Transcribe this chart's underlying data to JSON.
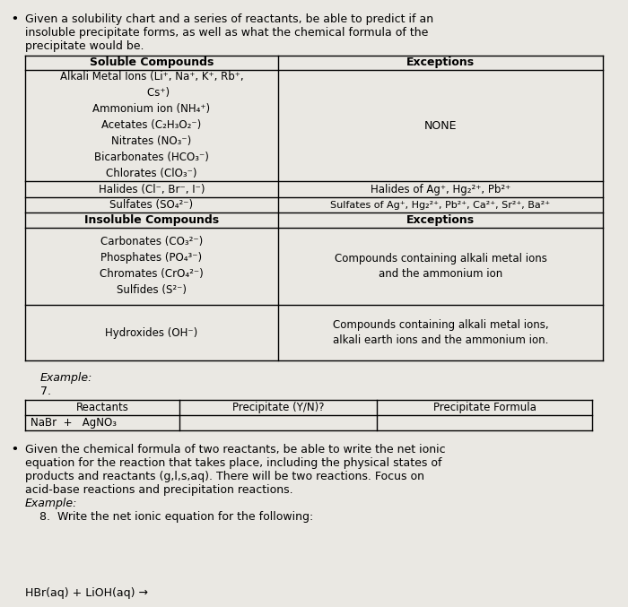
{
  "background_color": "#eae8e3",
  "bullet1": "Given a solubility chart and a series of reactants, be able to predict if an\ninsoluble precipitate forms, as well as what the chemical formula of the\nprecipitate would be.",
  "soluble_header": "Soluble Compounds",
  "exceptions_header1": "Exceptions",
  "insoluble_header": "Insoluble Compounds",
  "exceptions_header2": "Exceptions",
  "soluble_block": "Alkali Metal Ions (Li⁺, Na⁺, K⁺, Rb⁺,\n    Cs⁺)\nAmmonium ion (NH₄⁺)\nAcetates (C₂H₃O₂⁻)\nNitrates (NO₃⁻)\nBicarbonates (HCO₃⁻)\nChlorates (ClO₃⁻)",
  "halides_left": "Halides (Cl⁻, Br⁻, I⁻)",
  "halides_right": "Halides of Ag⁺, Hg₂²⁺, Pb²⁺",
  "sulfates_left": "Sulfates (SO₄²⁻)",
  "sulfates_right": "Sulfates of Ag⁺, Hg₂²⁺, Pb²⁺, Ca²⁺, Sr²⁺, Ba²⁺",
  "insoluble_block": "Carbonates (CO₃²⁻)\nPhosphates (PO₄³⁻)\nChromates (CrO₄²⁻)\nSulfides (S²⁻)",
  "insoluble_exc1": "Compounds containing alkali metal ions\nand the ammonium ion",
  "hydroxides_left": "Hydroxides (OH⁻)",
  "hydroxides_right": "Compounds containing alkali metal ions,\nalkali earth ions and the ammonium ion.",
  "example_label": "Example:",
  "problem_number": "7.",
  "tbl2_headers": [
    "Reactants",
    "Precipitate (Y/N)?",
    "Precipitate Formula"
  ],
  "tbl2_row1_col1": "NaBr  +   AgNO₃",
  "bullet2_line1": "Given the chemical formula of two reactants, be able to write the net ionic",
  "bullet2_line2": "equation for the reaction that takes place, including the physical states of",
  "bullet2_line3": "products and reactants (g,l,s,aq). There will be two reactions. Focus on",
  "bullet2_line4": "acid-base reactions and precipitation reactions.",
  "bullet2_line5": "Example:",
  "bullet2_line6": "    8.  Write the net ionic equation for the following:",
  "net_ionic": "HBr(aq) + LiOH(aq) →",
  "none_text": "NONE"
}
